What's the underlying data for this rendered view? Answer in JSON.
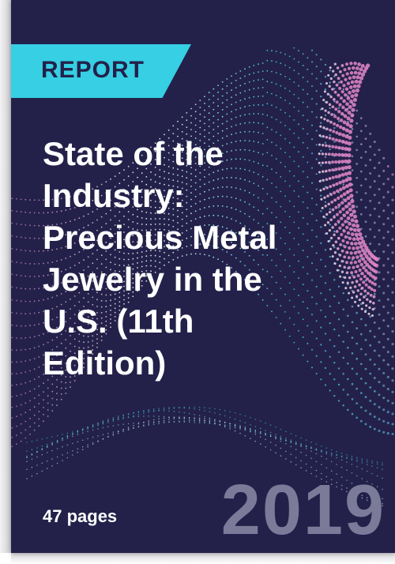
{
  "cover": {
    "tag": "REPORT",
    "title_lines": [
      "State of the",
      "Industry:",
      "Precious Metal",
      "Jewelry in the",
      "U.S. (11th",
      "Edition)"
    ],
    "pages": "47 pages",
    "year": "2019"
  },
  "colors": {
    "background": "#23214a",
    "accent_cyan": "#36cfe3",
    "accent_pink": "#f08fd0",
    "year_gray": "#7c7a99",
    "text": "#ffffff"
  },
  "decoration": {
    "pattern": "dotted-wave-lines",
    "pattern_colors": [
      "#f08fd0",
      "#36cfe3",
      "#ffffff"
    ]
  }
}
